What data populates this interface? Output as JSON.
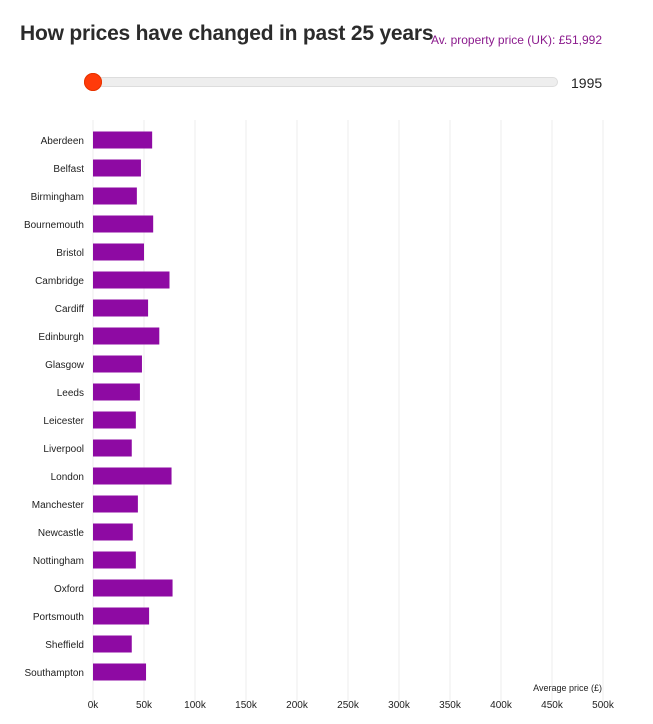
{
  "header": {
    "title": "How prices have changed in past 25 years",
    "avg_label": "Av. property price (UK): £51,992"
  },
  "slider": {
    "year": "1995",
    "position": 0
  },
  "colors": {
    "bar": "#8e0aa3",
    "accent": "#8b1a8d",
    "slider_handle": "#ff3b0a",
    "grid": "#eeeeee"
  },
  "chart_data": {
    "type": "bar",
    "orientation": "horizontal",
    "categories": [
      "Aberdeen",
      "Belfast",
      "Birmingham",
      "Bournemouth",
      "Bristol",
      "Cambridge",
      "Cardiff",
      "Edinburgh",
      "Glasgow",
      "Leeds",
      "Leicester",
      "Liverpool",
      "London",
      "Manchester",
      "Newcastle",
      "Nottingham",
      "Oxford",
      "Portsmouth",
      "Sheffield",
      "Southampton"
    ],
    "values": [
      58000,
      47000,
      43000,
      59000,
      50000,
      75000,
      54000,
      65000,
      48000,
      46000,
      42000,
      38000,
      77000,
      44000,
      39000,
      42000,
      78000,
      55000,
      38000,
      52000
    ],
    "xlabel": "Average price (£)",
    "ylabel": "",
    "xlim": [
      0,
      500000
    ],
    "xticks": [
      0,
      50000,
      100000,
      150000,
      200000,
      250000,
      300000,
      350000,
      400000,
      450000,
      500000
    ],
    "xtick_labels": [
      "0k",
      "50k",
      "100k",
      "150k",
      "200k",
      "250k",
      "300k",
      "350k",
      "400k",
      "450k",
      "500k"
    ],
    "grid": true
  }
}
